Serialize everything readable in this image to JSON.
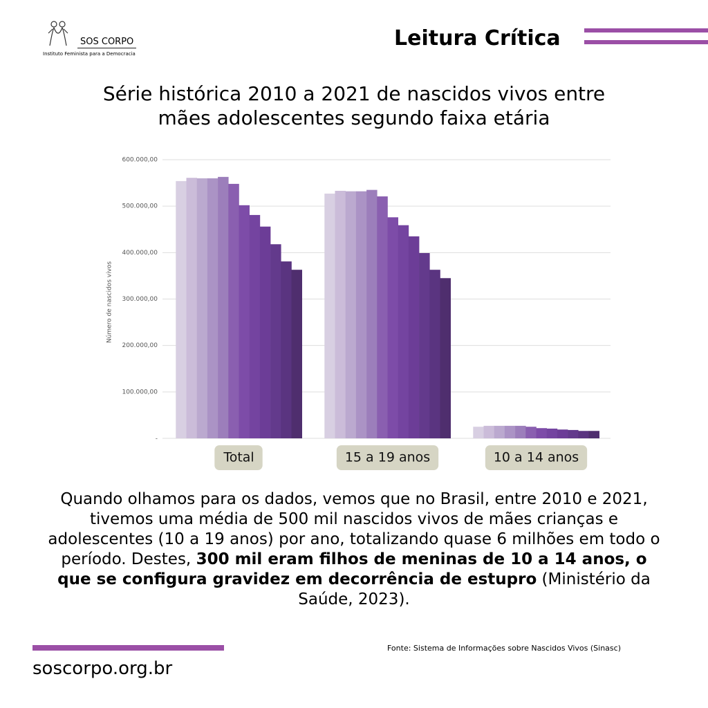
{
  "header": {
    "logo_name": "SOS CORPO",
    "logo_subtitle": "Instituto Feminista para a Democracia",
    "section": "Leitura Crítica"
  },
  "chart_data": {
    "type": "bar",
    "title": "Série histórica 2010 a 2021 de nascidos vivos entre mães adolescentes segundo faixa etária",
    "y_label": "Número de nascidos vivos",
    "categories": [
      "Total",
      "15 a 19 anos",
      "10 a 14 anos"
    ],
    "series": [
      {
        "color": "#d8cfe2",
        "values": [
          554000,
          527000,
          25000
        ]
      },
      {
        "color": "#cbbcd9",
        "values": [
          561000,
          533000,
          27000
        ]
      },
      {
        "color": "#bba9cf",
        "values": [
          560000,
          532000,
          27000
        ]
      },
      {
        "color": "#ab93c5",
        "values": [
          560000,
          532000,
          27000
        ]
      },
      {
        "color": "#9c7ebb",
        "values": [
          563000,
          535000,
          27000
        ]
      },
      {
        "color": "#8a5fb0",
        "values": [
          548000,
          521000,
          25000
        ]
      },
      {
        "color": "#7d4ca8",
        "values": [
          502000,
          476000,
          22000
        ]
      },
      {
        "color": "#7444a0",
        "values": [
          481000,
          459000,
          21000
        ]
      },
      {
        "color": "#6c3d97",
        "values": [
          456000,
          435000,
          19000
        ]
      },
      {
        "color": "#633a8c",
        "values": [
          418000,
          399000,
          18000
        ]
      },
      {
        "color": "#5a3480",
        "values": [
          381000,
          363000,
          16000
        ]
      },
      {
        "color": "#4f2e6e",
        "values": [
          363000,
          345000,
          16000
        ]
      }
    ],
    "ylim": [
      0,
      600000
    ],
    "yticks": [
      {
        "value": 0,
        "label": "-"
      },
      {
        "value": 100000,
        "label": "100.000,00"
      },
      {
        "value": 200000,
        "label": "200.000,00"
      },
      {
        "value": 300000,
        "label": "300.000,00"
      },
      {
        "value": 400000,
        "label": "400.000,00"
      },
      {
        "value": 500000,
        "label": "500.000,00"
      },
      {
        "value": 600000,
        "label": "600.000,00"
      }
    ],
    "grid": true
  },
  "text": {
    "parts": [
      "Quando olhamos para os dados, vemos que no Brasil, entre 2010 e 2021, tivemos uma média de 500 mil nascidos vivos de mães crianças e adolescentes (10 a 19 anos) por ano, totalizando quase 6 milhões em todo o período. Destes, ",
      "300 mil eram filhos de meninas de 10 a 14 anos, o que se configura gravidez em decorrência de estupro",
      " (Ministério da Saúde, 2023)."
    ]
  },
  "footer": {
    "source": "Fonte: Sistema de Informações sobre Nascidos Vivos (Sinasc)",
    "website": "soscorpo.org.br"
  }
}
